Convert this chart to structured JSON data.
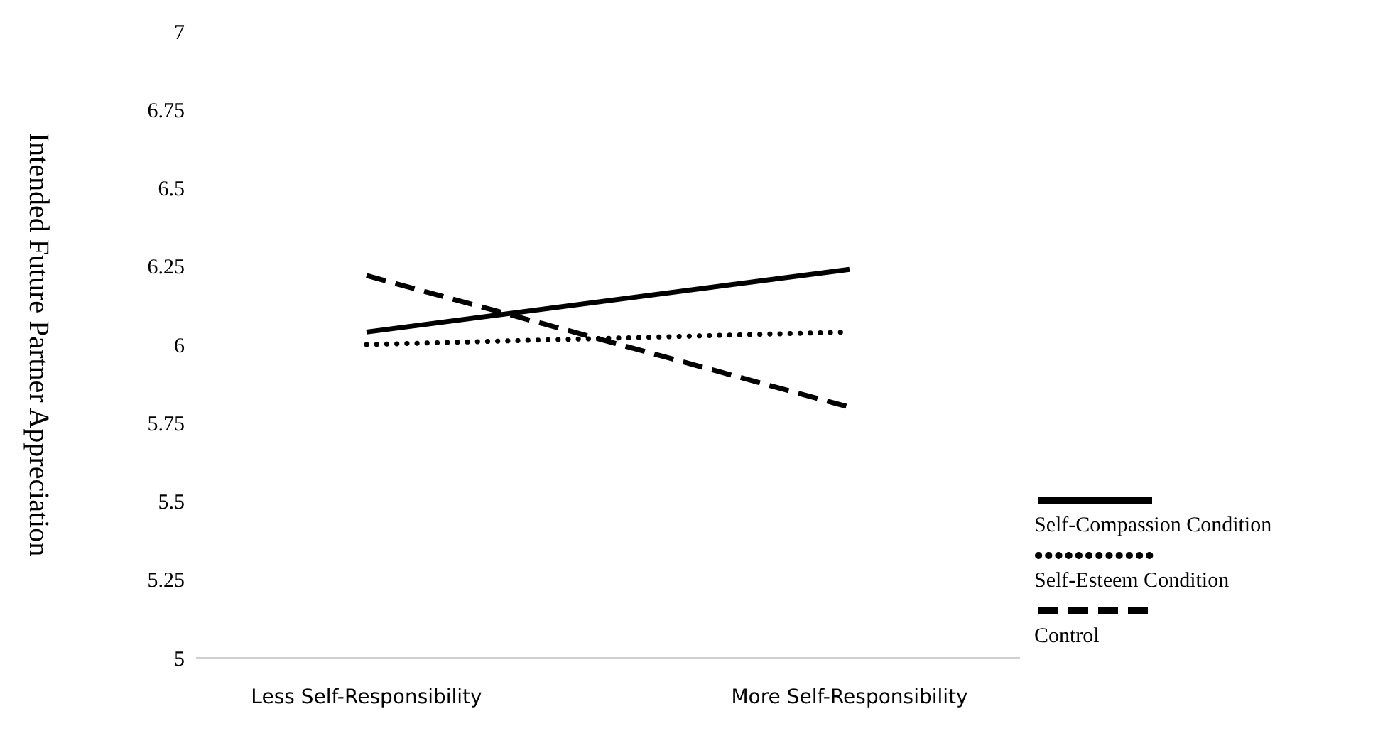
{
  "chart_data": {
    "type": "line",
    "ylabel": "Intended Future Partner Appreciation",
    "categories": [
      "Less Self-Responsibility",
      "More Self-Responsibility"
    ],
    "series": [
      {
        "name": "Self-Compassion Condition",
        "color": "#000000",
        "line_style": "solid",
        "values": [
          6.04,
          6.24
        ]
      },
      {
        "name": "Self-Esteem Condition",
        "color": "#000000",
        "line_style": "dotted",
        "values": [
          6.0,
          6.04
        ]
      },
      {
        "name": "Control",
        "color": "#000000",
        "line_style": "dashed",
        "values": [
          6.22,
          5.8
        ]
      }
    ],
    "ylim": [
      5,
      7
    ],
    "yticks": [
      5,
      5.25,
      5.5,
      5.75,
      6,
      6.25,
      6.5,
      6.75,
      7
    ],
    "grid": false,
    "legend": "bottom right",
    "marker": "none"
  }
}
